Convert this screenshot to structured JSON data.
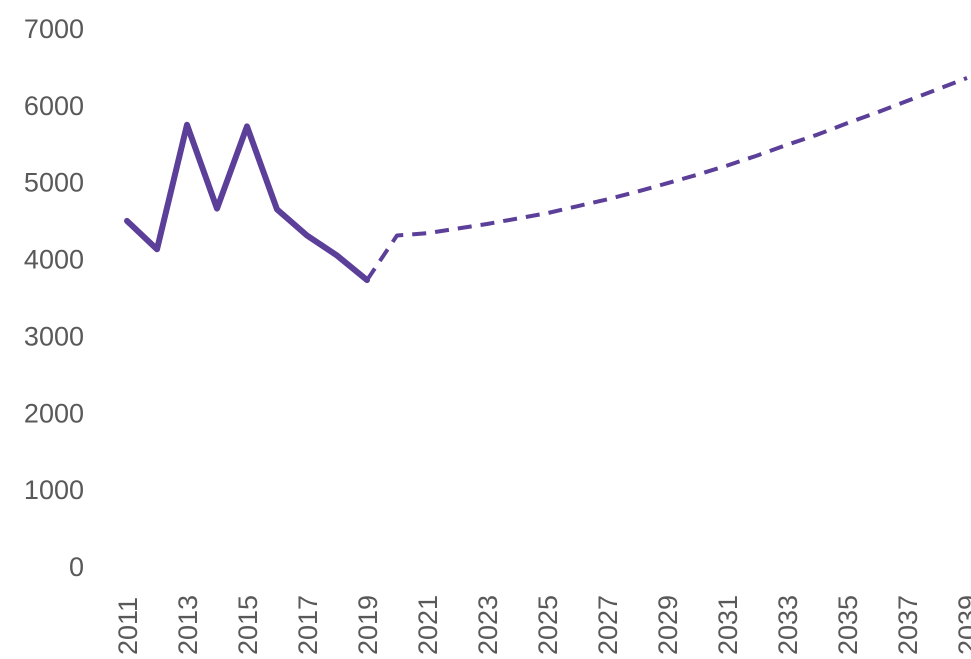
{
  "chart_data": {
    "type": "line",
    "title": "",
    "xlabel": "",
    "ylabel": "",
    "ylim": [
      0,
      7000
    ],
    "y_ticks": [
      "0",
      "1000",
      "2000",
      "3000",
      "4000",
      "5000",
      "6000",
      "7000"
    ],
    "x_ticks": [
      "2011",
      "2013",
      "2015",
      "2017",
      "2019",
      "2021",
      "2023",
      "2025",
      "2027",
      "2029",
      "2031",
      "2033",
      "2035",
      "2037",
      "2039"
    ],
    "grid": false,
    "legend": "none",
    "series": [
      {
        "style": "solid",
        "color": "#5b3f99",
        "x": [
          2011,
          2012,
          2013,
          2014,
          2015,
          2016,
          2017,
          2018,
          2019
        ],
        "values": [
          4490,
          4120,
          5740,
          4650,
          5720,
          4640,
          4300,
          4040,
          3720
        ]
      },
      {
        "style": "dashed",
        "color": "#5b3f99",
        "x": [
          2019,
          2020,
          2021,
          2022,
          2023,
          2024,
          2025,
          2026,
          2027,
          2028,
          2029,
          2030,
          2031,
          2032,
          2033,
          2034,
          2035,
          2036,
          2037,
          2038,
          2039
        ],
        "values": [
          3720,
          4300,
          4330,
          4390,
          4450,
          4520,
          4590,
          4680,
          4770,
          4870,
          4980,
          5090,
          5210,
          5340,
          5480,
          5610,
          5760,
          5900,
          6050,
          6200,
          6350
        ]
      }
    ]
  }
}
